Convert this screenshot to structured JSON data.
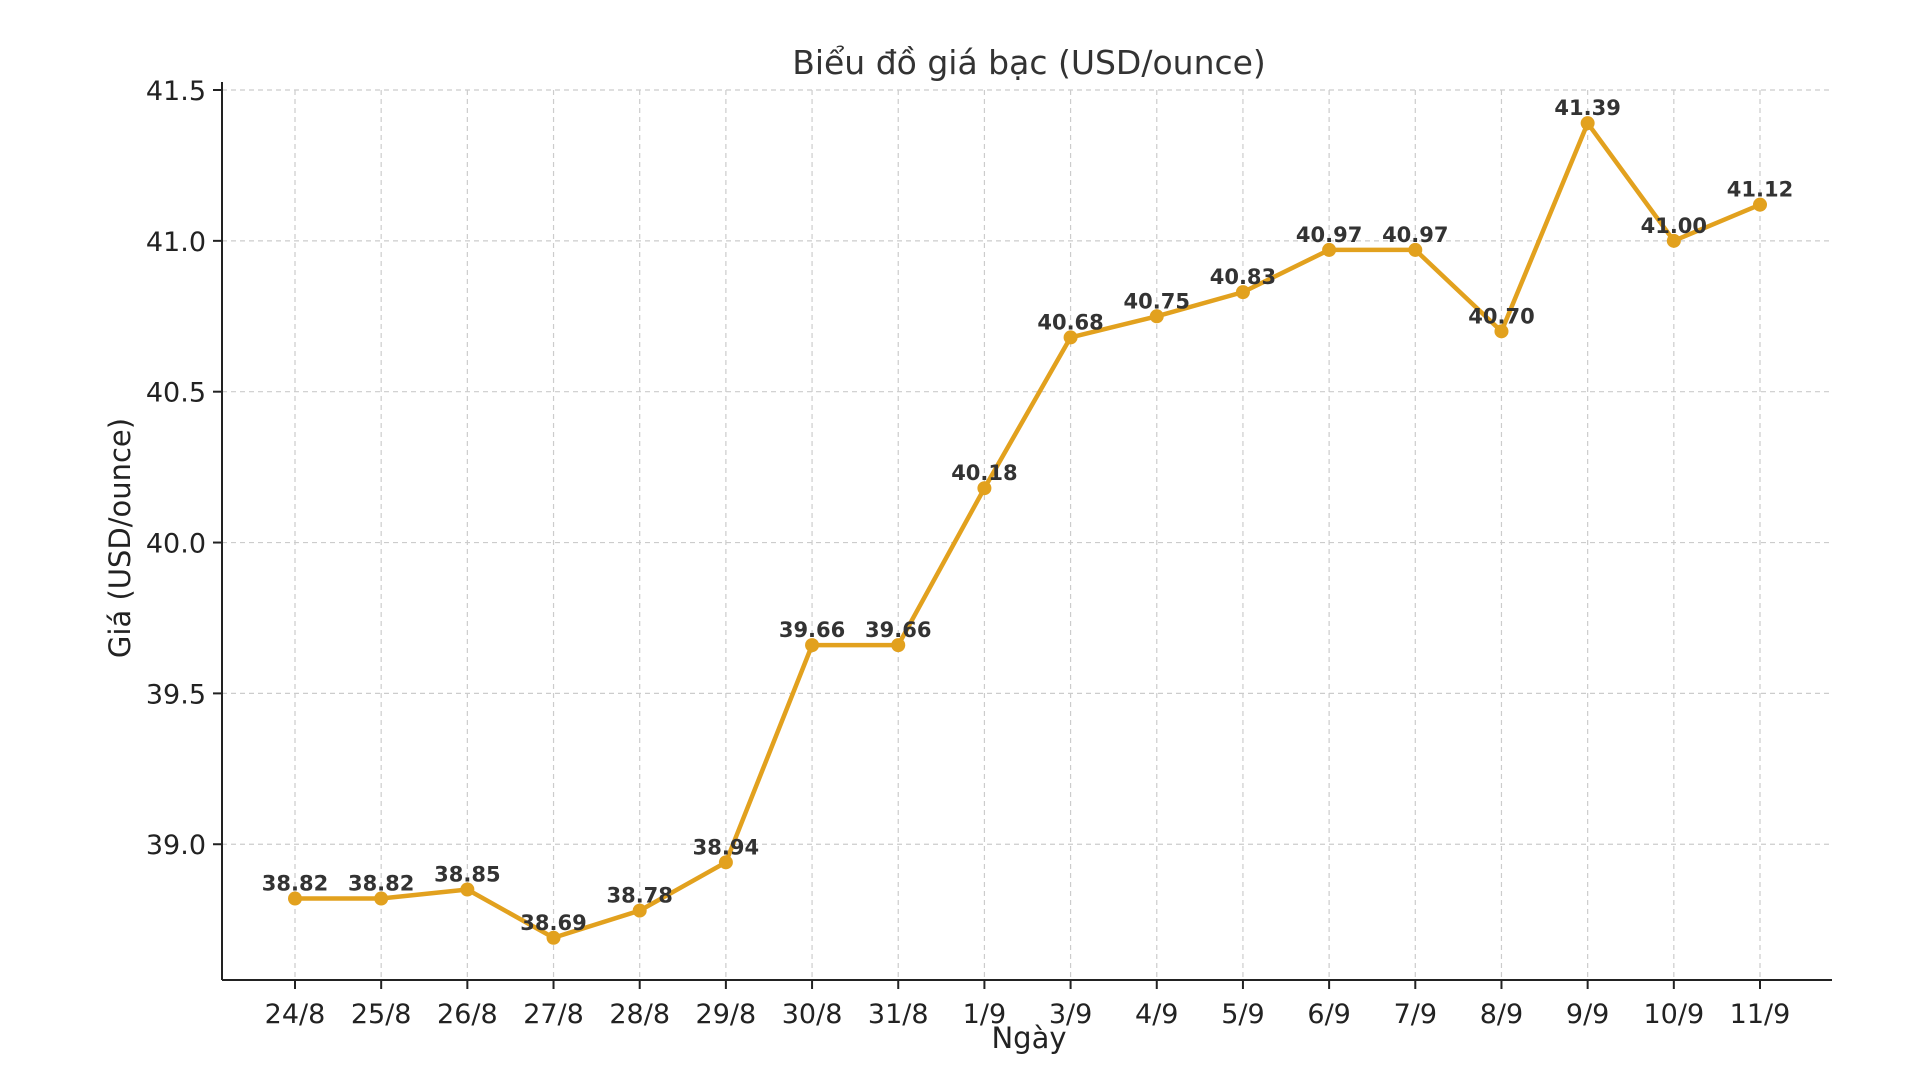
{
  "chart_data": {
    "type": "line",
    "title": "Biểu đồ giá bạc (USD/ounce)",
    "xlabel": "Ngày",
    "ylabel": "Giá (USD/ounce)",
    "categories": [
      "24/8",
      "25/8",
      "26/8",
      "27/8",
      "28/8",
      "29/8",
      "30/8",
      "31/8",
      "1/9",
      "3/9",
      "4/9",
      "5/9",
      "6/9",
      "7/9",
      "8/9",
      "9/9",
      "10/9",
      "11/9"
    ],
    "values": [
      38.82,
      38.82,
      38.85,
      38.69,
      38.78,
      38.94,
      39.66,
      39.66,
      40.18,
      40.68,
      40.75,
      40.83,
      40.97,
      40.97,
      40.7,
      41.39,
      41.0,
      41.12
    ],
    "value_labels": [
      "38.82",
      "38.82",
      "38.85",
      "38.69",
      "38.78",
      "38.94",
      "39.66",
      "39.66",
      "40.18",
      "40.68",
      "40.75",
      "40.83",
      "40.97",
      "40.97",
      "40.70",
      "41.39",
      "41.00",
      "41.12"
    ],
    "yticks": [
      39.0,
      39.5,
      40.0,
      40.5,
      41.0,
      41.5
    ],
    "ytick_labels": [
      "39.0",
      "39.5",
      "40.0",
      "40.5",
      "41.0",
      "41.5"
    ],
    "ylim": [
      38.55,
      41.5
    ],
    "grid": true,
    "legend": "none",
    "colors": {
      "line": "#E2A11E",
      "marker": "#E2A11E",
      "grid": "#CCCCCC",
      "axis": "#222222",
      "label_text": "#333333"
    }
  }
}
